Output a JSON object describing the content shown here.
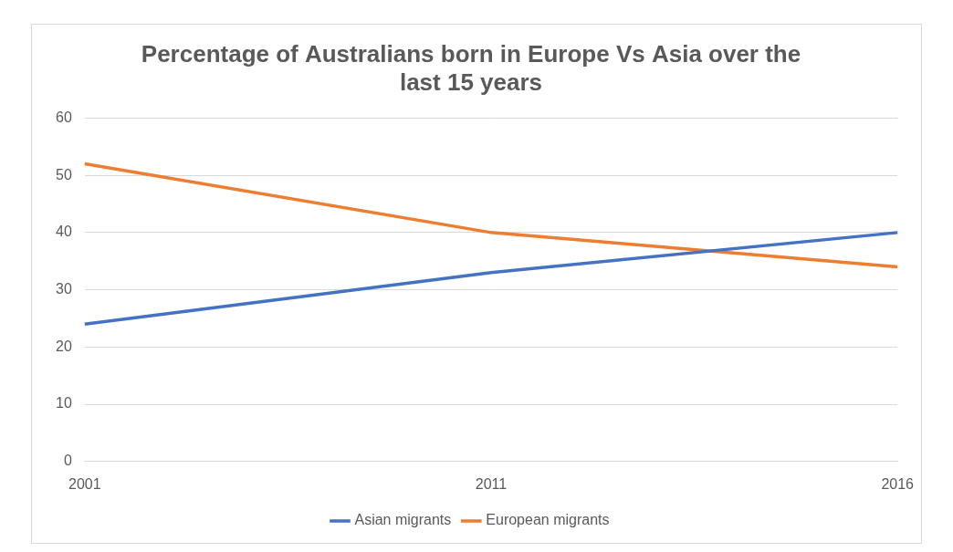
{
  "chart_data": {
    "type": "line",
    "title": [
      "Percentage of Australians born in Europe Vs Asia over the",
      "last 15 years"
    ],
    "categories": [
      "2001",
      "2011",
      "2016"
    ],
    "series": [
      {
        "name": "Asian migrants",
        "color": "#4472c4",
        "values": [
          24,
          33,
          40
        ]
      },
      {
        "name": "European migrants",
        "color": "#ed7d31",
        "values": [
          52,
          40,
          34
        ]
      }
    ],
    "ylim": [
      0,
      60
    ],
    "yticks": [
      0,
      10,
      20,
      30,
      40,
      50,
      60
    ],
    "grid": true,
    "legend": "bottom",
    "marker": "none"
  }
}
